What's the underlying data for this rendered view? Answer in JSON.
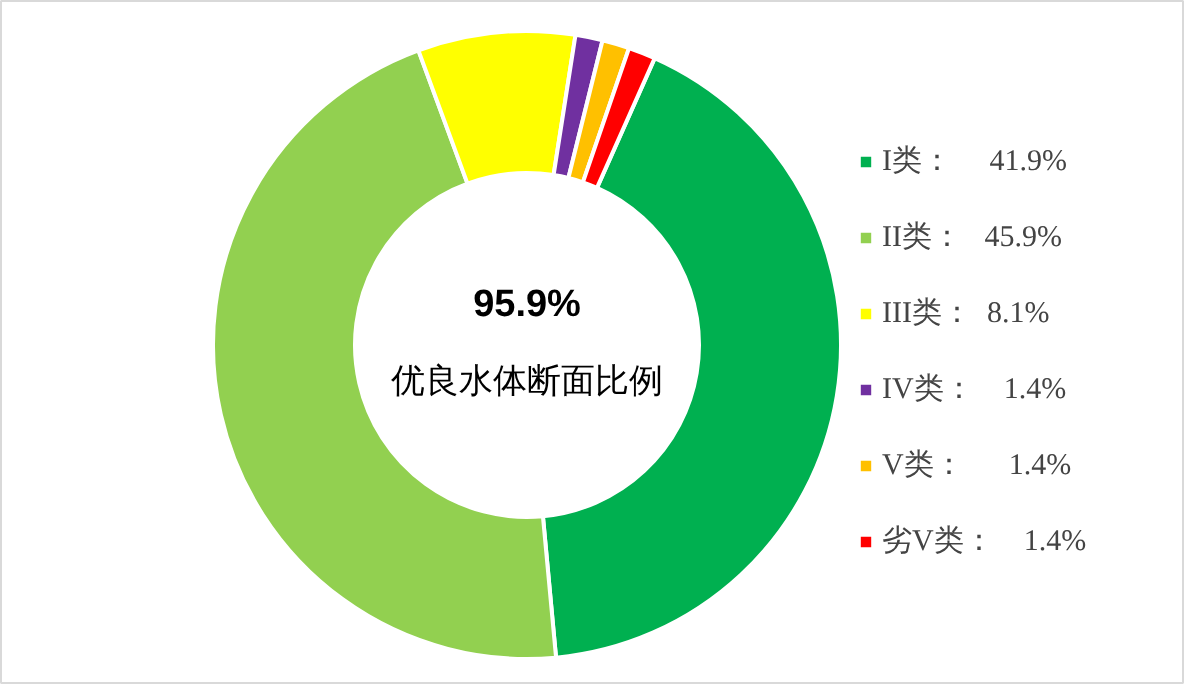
{
  "chart_data": {
    "type": "donut",
    "categories": [
      "I类",
      "II类",
      "III类",
      "IV类",
      "V类",
      "劣V类"
    ],
    "values": [
      41.9,
      45.9,
      8.1,
      1.4,
      1.4,
      1.4
    ],
    "value_labels": [
      "41.9%",
      "45.9%",
      "8.1%",
      "1.4%",
      "1.4%",
      "1.4%"
    ],
    "colors": [
      "#00b050",
      "#92d050",
      "#ffff00",
      "#7030a0",
      "#ffc000",
      "#ff0000"
    ],
    "annotations": [
      "95.9%",
      "优良水体断面比例"
    ],
    "legend": "right"
  }
}
